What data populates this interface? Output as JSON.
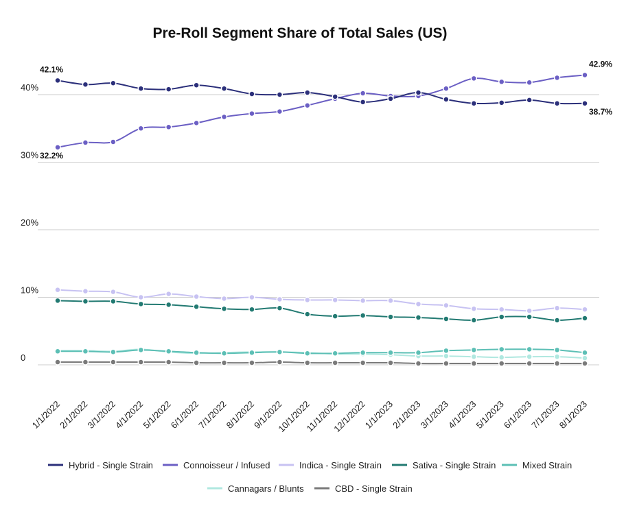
{
  "chart_data": {
    "type": "line",
    "title": "Pre-Roll Segment Share of Total Sales (US)",
    "categories": [
      "1/1/2022",
      "2/1/2022",
      "3/1/2022",
      "4/1/2022",
      "5/1/2022",
      "6/1/2022",
      "7/1/2022",
      "8/1/2022",
      "9/1/2022",
      "10/1/2022",
      "11/1/2022",
      "12/1/2022",
      "1/1/2023",
      "2/1/2023",
      "3/1/2023",
      "4/1/2023",
      "5/1/2023",
      "6/1/2023",
      "7/1/2023",
      "8/1/2023"
    ],
    "ylim": [
      0,
      45
    ],
    "yticks": [
      0,
      {
        "value": 10,
        "label": "10%"
      },
      {
        "value": 20,
        "label": "20%"
      },
      {
        "value": 30,
        "label": "30%"
      },
      {
        "value": 40,
        "label": "40%"
      }
    ],
    "grid": true,
    "series": [
      {
        "name": "Hybrid - Single Strain",
        "color": "#2b2f7a",
        "values": [
          42.1,
          41.5,
          41.7,
          40.9,
          40.8,
          41.4,
          40.9,
          40.1,
          40.0,
          40.3,
          39.7,
          38.9,
          39.4,
          40.3,
          39.3,
          38.7,
          38.8,
          39.2,
          38.7,
          38.7
        ],
        "value_labels": [
          "42.1%",
          null,
          null,
          null,
          null,
          null,
          null,
          null,
          null,
          null,
          null,
          null,
          null,
          null,
          null,
          null,
          null,
          null,
          null,
          "38.7%"
        ]
      },
      {
        "name": "Connoisseur / Infused",
        "color": "#6b5fc4",
        "values": [
          32.2,
          32.9,
          33.0,
          35.0,
          35.2,
          35.8,
          36.7,
          37.2,
          37.5,
          38.4,
          39.4,
          40.2,
          39.8,
          39.8,
          40.9,
          42.4,
          41.9,
          41.8,
          42.5,
          42.9
        ],
        "value_labels": [
          "32.2%",
          null,
          null,
          null,
          null,
          null,
          null,
          null,
          null,
          null,
          null,
          null,
          null,
          null,
          null,
          null,
          null,
          null,
          null,
          "42.9%"
        ]
      },
      {
        "name": "Indica - Single Strain",
        "color": "#c7c2f2",
        "values": [
          11.1,
          10.9,
          10.8,
          10.0,
          10.5,
          10.1,
          9.8,
          10.0,
          9.7,
          9.6,
          9.6,
          9.5,
          9.5,
          9.0,
          8.8,
          8.3,
          8.2,
          8.0,
          8.4,
          8.2
        ]
      },
      {
        "name": "Sativa - Single Strain",
        "color": "#227a72",
        "values": [
          9.5,
          9.4,
          9.4,
          9.0,
          8.9,
          8.6,
          8.3,
          8.2,
          8.4,
          7.5,
          7.2,
          7.3,
          7.1,
          7.0,
          6.8,
          6.6,
          7.1,
          7.1,
          6.6,
          6.9
        ]
      },
      {
        "name": "Mixed Strain",
        "color": "#5cbfb5",
        "values": [
          2.0,
          2.0,
          1.9,
          2.2,
          2.0,
          1.8,
          1.7,
          1.8,
          1.9,
          1.7,
          1.7,
          1.8,
          1.8,
          1.8,
          2.1,
          2.2,
          2.3,
          2.3,
          2.2,
          1.8
        ]
      },
      {
        "name": "Cannagars / Blunts",
        "color": "#b0e8e0",
        "values": [
          2.1,
          2.1,
          2.0,
          2.3,
          1.9,
          1.7,
          1.8,
          1.9,
          1.9,
          1.8,
          1.6,
          1.6,
          1.5,
          1.3,
          1.3,
          1.2,
          1.1,
          1.2,
          1.2,
          1.0
        ]
      },
      {
        "name": "CBD - Single Strain",
        "color": "#7a7a7a",
        "values": [
          0.4,
          0.4,
          0.4,
          0.4,
          0.4,
          0.3,
          0.3,
          0.3,
          0.4,
          0.3,
          0.3,
          0.3,
          0.3,
          0.2,
          0.2,
          0.2,
          0.2,
          0.2,
          0.2,
          0.2
        ]
      }
    ]
  }
}
